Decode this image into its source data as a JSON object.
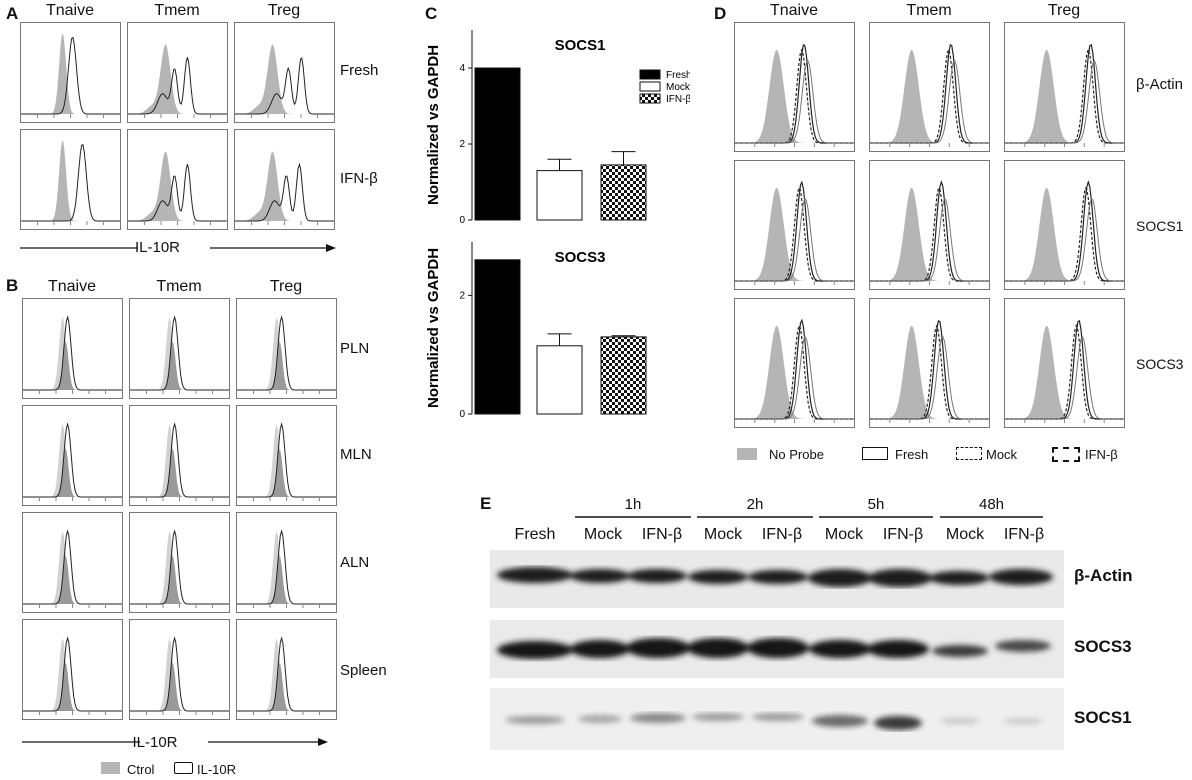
{
  "panelA": {
    "letter": "A",
    "cols": [
      "Tnaive",
      "Tmem",
      "Treg"
    ],
    "rows": [
      "Fresh",
      "IFN-β"
    ],
    "axis_label": "IL-10R"
  },
  "panelB": {
    "letter": "B",
    "cols": [
      "Tnaive",
      "Tmem",
      "Treg"
    ],
    "rows": [
      "PLN",
      "MLN",
      "ALN",
      "Spleen"
    ],
    "axis_label": "IL-10R",
    "legend": [
      "Ctrol",
      "IL-10R"
    ]
  },
  "panelC": {
    "letter": "C",
    "chart_data": [
      {
        "type": "bar",
        "title": "SOCS1",
        "ylabel": "Normalized vs  GAPDH",
        "categories": [
          "Fresh",
          "Mock",
          "IFN-β"
        ],
        "values": [
          4.0,
          1.3,
          1.45
        ],
        "errors": [
          0,
          0.3,
          0.35
        ],
        "ylim": [
          0,
          5
        ],
        "yticks": [
          "0",
          "2",
          "4"
        ],
        "legend": [
          "Fresh",
          "Mock",
          "IFN-β"
        ],
        "legend_position": "top-right"
      },
      {
        "type": "bar",
        "title": "SOCS3",
        "ylabel": "Normalized vs  GAPDH",
        "categories": [
          "Fresh",
          "Mock",
          "IFN-β"
        ],
        "values": [
          2.6,
          1.15,
          1.3
        ],
        "errors": [
          0,
          0.2,
          0.02
        ],
        "ylim": [
          0,
          2.9
        ],
        "yticks": [
          "0",
          "2"
        ]
      }
    ]
  },
  "panelD": {
    "letter": "D",
    "cols": [
      "Tnaive",
      "Tmem",
      "Treg"
    ],
    "rows": [
      "β-Actin",
      "SOCS1",
      "SOCS3"
    ],
    "legend": [
      "No Probe",
      "Fresh",
      "Mock",
      "IFN-β"
    ]
  },
  "panelE": {
    "letter": "E",
    "timepoints": [
      "1h",
      "2h",
      "5h",
      "48h"
    ],
    "lanes": [
      "Fresh",
      "Mock",
      "IFN-β",
      "Mock",
      "IFN-β",
      "Mock",
      "IFN-β",
      "Mock",
      "IFN-β"
    ],
    "blots": [
      "β-Actin",
      "SOCS3",
      "SOCS1"
    ]
  },
  "colors": {
    "ctrl_fill": "#b5b5b5",
    "line": "#222222",
    "bar_fill": "#000000"
  }
}
